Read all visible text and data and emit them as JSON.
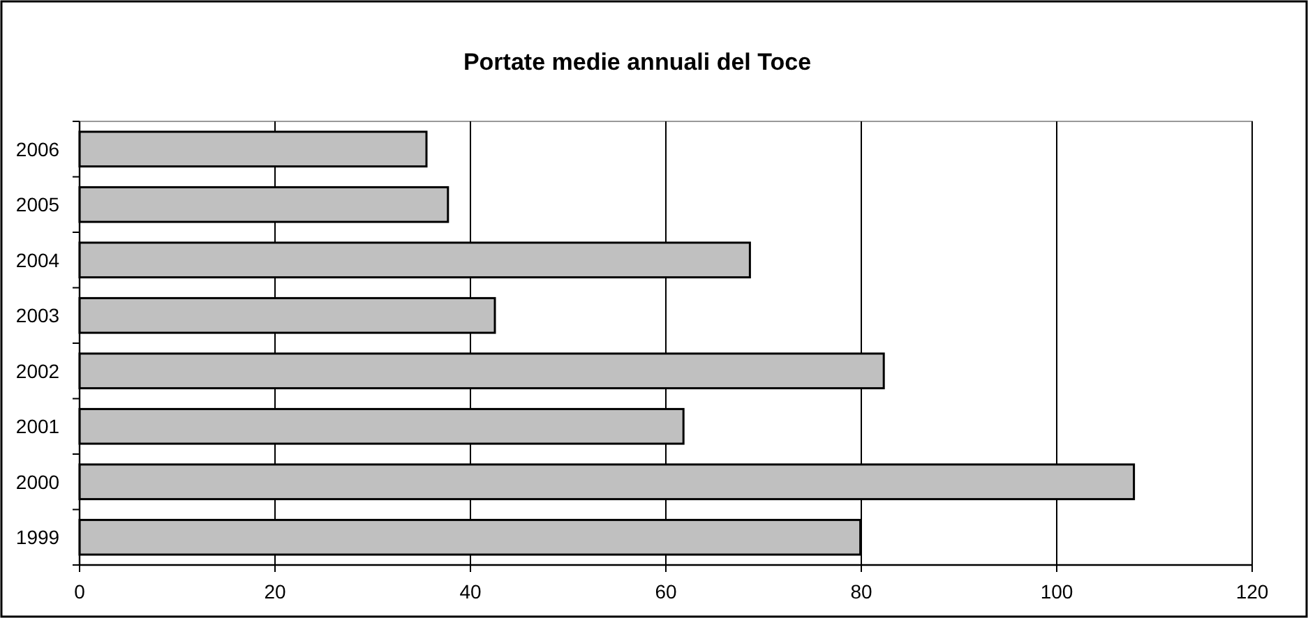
{
  "chart_data": {
    "type": "bar",
    "orientation": "horizontal",
    "title": "Portate medie annuali del Toce",
    "categories": [
      "2006",
      "2005",
      "2004",
      "2003",
      "2002",
      "2001",
      "2000",
      "1999"
    ],
    "values": [
      35.5,
      37.7,
      68.6,
      42.5,
      82.3,
      61.8,
      107.9,
      79.9
    ],
    "color": "#c0c0c0",
    "xlim": [
      0,
      120
    ],
    "xticks": [
      0,
      20,
      40,
      60,
      80,
      100,
      120
    ],
    "grid": "x"
  }
}
